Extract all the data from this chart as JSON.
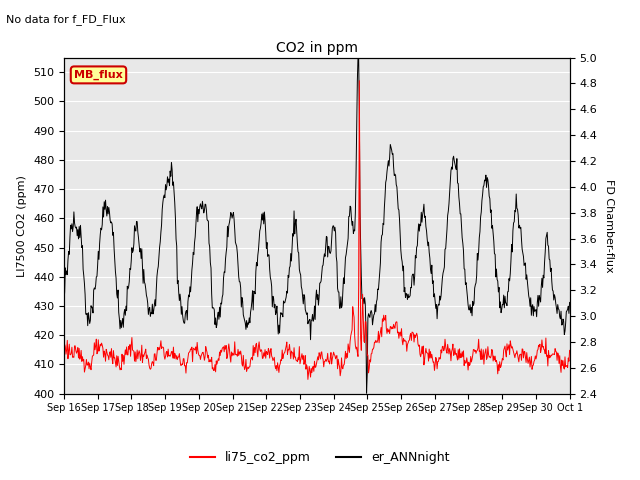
{
  "title": "CO2 in ppm",
  "top_label": "No data for f_FD_Flux",
  "ylabel_left": "LI7500 CO2 (ppm)",
  "ylabel_right": "FD Chamber-flux",
  "ylim_left": [
    400,
    515
  ],
  "ylim_right": [
    2.4,
    5.0
  ],
  "yticks_left": [
    400,
    410,
    420,
    430,
    440,
    450,
    460,
    470,
    480,
    490,
    500,
    510
  ],
  "yticks_right": [
    2.4,
    2.6,
    2.8,
    3.0,
    3.2,
    3.4,
    3.6,
    3.8,
    4.0,
    4.2,
    4.4,
    4.6,
    4.8,
    5.0
  ],
  "xtick_labels": [
    "Sep 16",
    "Sep 17",
    "Sep 18",
    "Sep 19",
    "Sep 20",
    "Sep 21",
    "Sep 22",
    "Sep 23",
    "Sep 24",
    "Sep 25",
    "Sep 26",
    "Sep 27",
    "Sep 28",
    "Sep 29",
    "Sep 30",
    "Oct 1"
  ],
  "legend_entries": [
    "li75_co2_ppm",
    "er_ANNnight"
  ],
  "legend_colors": [
    "red",
    "black"
  ],
  "mb_flux_label": "MB_flux",
  "mb_flux_color": "#cc0000",
  "mb_flux_bg": "#ffff99",
  "mb_flux_border": "#cc0000",
  "line_red_color": "red",
  "line_black_color": "black",
  "background_color": "#e8e8e8"
}
